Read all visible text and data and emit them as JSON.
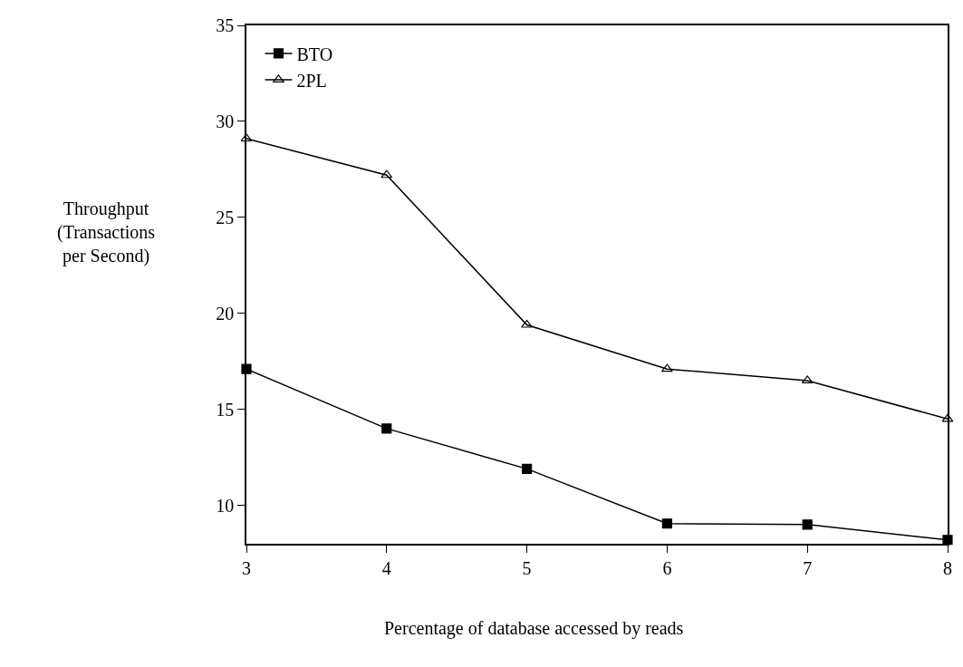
{
  "chart_data": {
    "type": "line",
    "xlabel": "Percentage of database accessed by reads",
    "ylabel": "Throughput\n(Transactions\nper Second)",
    "x": [
      3,
      4,
      5,
      6,
      7,
      8
    ],
    "series": [
      {
        "name": "BTO",
        "color": "#000000",
        "marker": "square",
        "values": [
          17.1,
          14.0,
          11.9,
          9.05,
          9.0,
          8.2
        ]
      },
      {
        "name": "2PL",
        "color": "#000000",
        "marker": "triangle",
        "values": [
          29.1,
          27.2,
          19.4,
          17.1,
          16.5,
          14.5
        ]
      }
    ],
    "xlim": [
      3,
      8
    ],
    "xticks": [
      3,
      4,
      5,
      6,
      7,
      8
    ],
    "ylim": [
      8,
      35
    ],
    "yticks": [
      10,
      15,
      20,
      25,
      30,
      35
    ],
    "legend": "top left",
    "line_style": "solid"
  }
}
